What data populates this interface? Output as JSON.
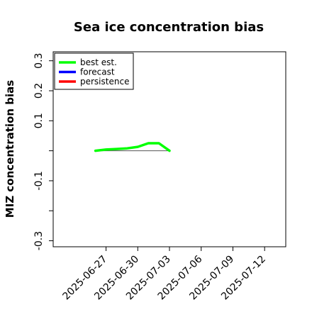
{
  "chart_data": {
    "type": "line",
    "title": "Sea ice concentration bias",
    "xlabel": "",
    "ylabel": "MIZ concentration bias",
    "xlim": [
      "2025-06-22",
      "2025-07-14"
    ],
    "ylim": [
      -0.32,
      0.33
    ],
    "yticks": [
      -0.3,
      -0.2,
      -0.1,
      0.0,
      0.1,
      0.2,
      0.3
    ],
    "yticklabels": [
      "-0.3",
      "",
      "-0.1",
      "",
      "0.1",
      "0.2",
      "0.3"
    ],
    "xticks": [
      "2025-06-27",
      "2025-06-30",
      "2025-07-03",
      "2025-07-06",
      "2025-07-09",
      "2025-07-12"
    ],
    "xticklabels": [
      "2025-06-27",
      "2025-06-30",
      "2025-07-03",
      "2025-07-06",
      "2025-07-09",
      "2025-07-12"
    ],
    "highlight_tick": "2025-07-03",
    "highlight_color": "#228b22",
    "zero_line": true,
    "grid": false,
    "legend": "top-left",
    "series": [
      {
        "name": "best est.",
        "color": "#00ff00",
        "x": [
          "2025-06-26",
          "2025-06-27",
          "2025-06-28",
          "2025-06-29",
          "2025-06-30",
          "2025-07-01",
          "2025-07-02",
          "2025-07-03"
        ],
        "y": [
          0.0,
          0.004,
          0.006,
          0.008,
          0.013,
          0.025,
          0.025,
          0.0
        ]
      },
      {
        "name": "forecast",
        "color": "#0000ff",
        "x": [],
        "y": []
      },
      {
        "name": "persistence",
        "color": "#ff0000",
        "x": [],
        "y": []
      }
    ]
  }
}
